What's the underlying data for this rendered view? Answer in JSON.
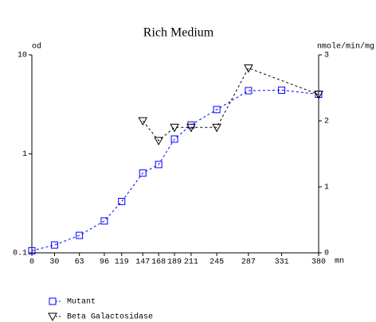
{
  "chart_data": {
    "type": "line",
    "title": "Rich Medium",
    "y_label": "od",
    "y2_label": "nmole/min/mg",
    "x_label": "mn",
    "xlim": [
      0,
      380
    ],
    "xticks": [
      0,
      30,
      63,
      96,
      119,
      147,
      168,
      189,
      211,
      245,
      287,
      331,
      380
    ],
    "ylim": [
      0.1,
      10
    ],
    "yticks": [
      0.1,
      1,
      10
    ],
    "ylog": true,
    "y2lim": [
      0,
      3
    ],
    "y2ticks": [
      0,
      1,
      2,
      3
    ],
    "legend": "bottom-left",
    "series": [
      {
        "name": "Mutant",
        "color": "#0000ff",
        "marker": "square",
        "x": [
          0,
          30,
          63,
          96,
          119,
          147,
          168,
          189,
          211,
          245,
          287,
          331,
          380
        ],
        "values": [
          0.105,
          0.12,
          0.15,
          0.21,
          0.33,
          0.64,
          0.78,
          1.41,
          1.96,
          2.8,
          4.35,
          4.4,
          4.0
        ]
      },
      {
        "name": "Beta Galactosidase",
        "color": "#000000",
        "marker": "triangle",
        "axis": "y2",
        "x": [
          147,
          168,
          189,
          211,
          245,
          287,
          380
        ],
        "values": [
          2.0,
          1.7,
          1.9,
          1.9,
          1.9,
          2.8,
          2.4
        ]
      }
    ]
  }
}
